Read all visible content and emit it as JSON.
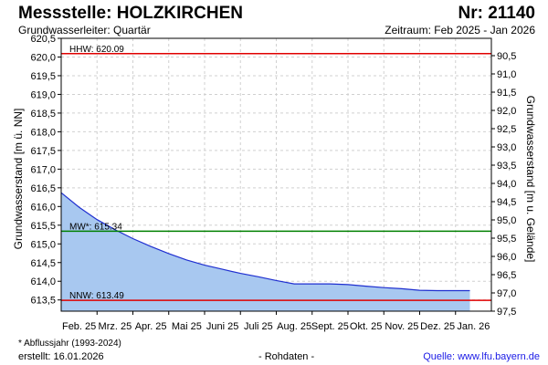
{
  "header": {
    "title": "Messstelle: HOLZKIRCHEN",
    "number": "Nr: 21140",
    "aquifer": "Grundwasserleiter: Quartär",
    "period": "Zeitraum: Feb 2025 - Jan 2026"
  },
  "footer": {
    "footnote": "* Abflussjahr (1993-2024)",
    "created": "erstellt:  16.01.2026",
    "rawdata": "- Rohdaten -",
    "source": "Quelle: www.lfu.bayern.de"
  },
  "colors": {
    "area_fill": "#a8c8f0",
    "series_line": "#1f2fd0",
    "hhw_line": "#e00000",
    "mw_line": "#008000",
    "nnw_line": "#e00000",
    "grid": "#d0d0d0"
  },
  "chart_data": {
    "type": "area",
    "ylabel": "Grundwasserstand [m ü. NN]",
    "y2label": "Grundwasserstand [m u. Gelände]",
    "ylim": [
      613.2,
      620.5
    ],
    "yticks": [
      "613,5",
      "614,0",
      "614,5",
      "615,0",
      "615,5",
      "616,0",
      "616,5",
      "617,0",
      "617,5",
      "618,0",
      "618,5",
      "619,0",
      "619,5",
      "620,0",
      "620,5"
    ],
    "y2ticks": [
      "90,5",
      "91,0",
      "91,5",
      "92,0",
      "92,5",
      "93,0",
      "93,5",
      "94,0",
      "94,5",
      "95,0",
      "95,5",
      "96,0",
      "96,5",
      "97,0",
      "97,5"
    ],
    "x_categories": [
      "Feb. 25",
      "Mrz. 25",
      "Apr. 25",
      "Mai 25",
      "Juni 25",
      "Juli 25",
      "Aug. 25",
      "Sept. 25",
      "Okt. 25",
      "Nov. 25",
      "Dez. 25",
      "Jan. 26"
    ],
    "x_ticks_months": [
      "Mrz. 25",
      "Apr. 25",
      "Mai 25",
      "Juni 25",
      "Juli 25",
      "Aug. 25",
      "Sept. 25",
      "Okt. 25",
      "Nov. 25",
      "Dez. 25",
      "Jan. 26"
    ],
    "grid": true,
    "series": [
      {
        "months": [
          0,
          0.5,
          1,
          1.5,
          2,
          2.5,
          3,
          3.5,
          4,
          4.5,
          5,
          5.5,
          6,
          6.5,
          7,
          7.5,
          8,
          8.5,
          9,
          9.5,
          10,
          10.5,
          11,
          11.4
        ],
        "values": [
          616.37,
          615.98,
          615.65,
          615.38,
          615.14,
          614.93,
          614.74,
          614.57,
          614.43,
          614.32,
          614.21,
          614.12,
          614.02,
          613.93,
          613.93,
          613.93,
          613.91,
          613.87,
          613.83,
          613.8,
          613.76,
          613.75,
          613.75,
          613.75
        ]
      }
    ],
    "reference_lines": [
      {
        "label": "HHW: 620.09",
        "value": 620.09
      },
      {
        "label": "MW*: 615.34",
        "value": 615.34
      },
      {
        "label": "NNW: 613.49",
        "value": 613.49
      }
    ]
  }
}
